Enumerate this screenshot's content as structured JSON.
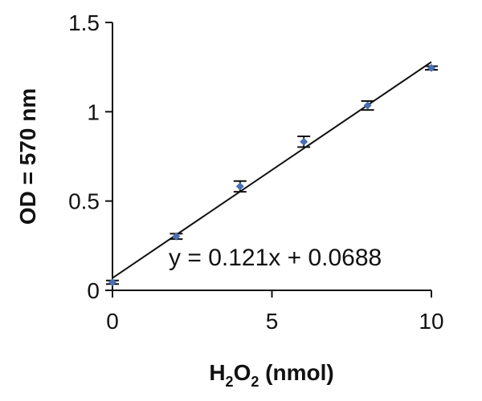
{
  "chart_data": {
    "type": "scatter",
    "title": "",
    "ylabel": "OD = 570 nm",
    "xlabel": {
      "main": "H",
      "sub1": "2",
      "mid": "O",
      "sub2": "2",
      "rest": " (nmol)"
    },
    "xlim": [
      0,
      10
    ],
    "ylim": [
      0,
      1.5
    ],
    "xticks": [
      0,
      5,
      10
    ],
    "yticks": [
      0,
      0.5,
      1,
      1.5
    ],
    "x_tick_labels": [
      "0",
      "5",
      "10"
    ],
    "y_tick_labels": [
      "0",
      "0.5",
      "1",
      "1.5"
    ],
    "grid": false,
    "legend": "none",
    "series": [
      {
        "x": [
          0,
          2,
          4,
          6,
          8,
          10
        ],
        "y": [
          0.045,
          0.302,
          0.582,
          0.832,
          1.035,
          1.245
        ],
        "error": [
          0.01,
          0.015,
          0.03,
          0.03,
          0.025,
          0.01
        ],
        "color": "#4a6fb5"
      }
    ],
    "trendline": {
      "slope": 0.121,
      "intercept": 0.0688,
      "x_range": [
        0,
        10
      ],
      "label": "y = 0.121x + 0.0688",
      "color": "#111111"
    }
  }
}
